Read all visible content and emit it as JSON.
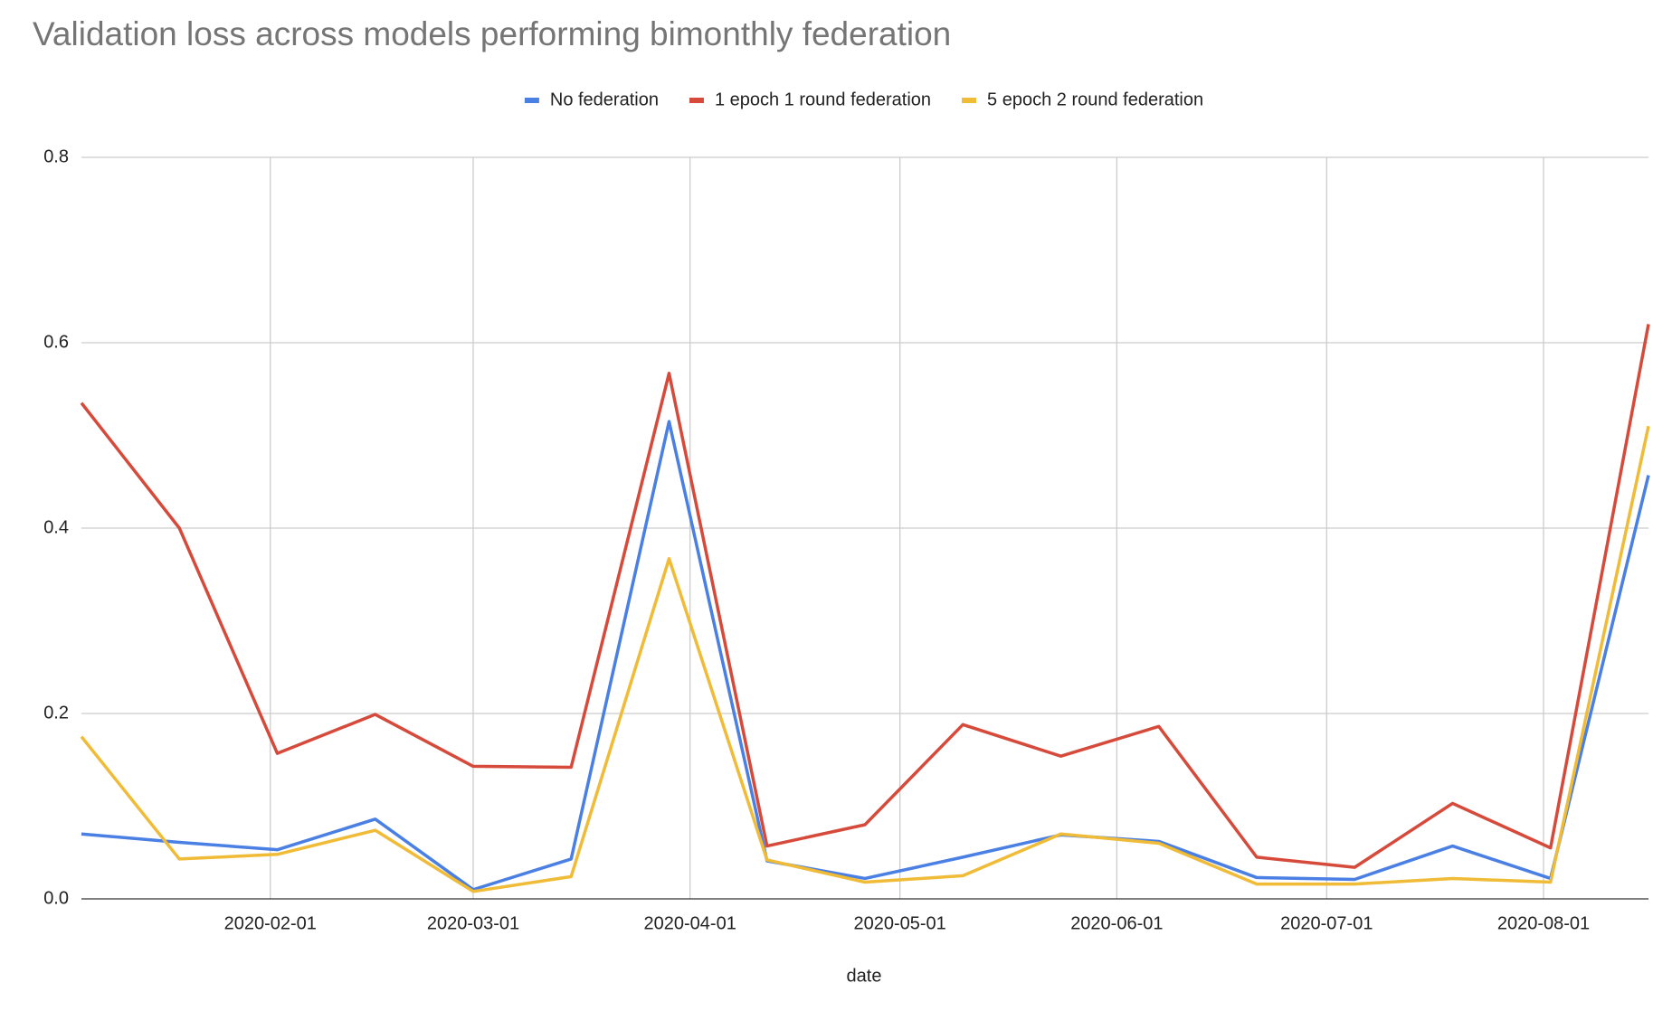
{
  "chart_data": {
    "type": "line",
    "title": "Validation loss across models performing bimonthly federation",
    "x_label": "date",
    "x": [
      "2020-01-05",
      "2020-01-19",
      "2020-02-02",
      "2020-02-16",
      "2020-03-01",
      "2020-03-15",
      "2020-03-29",
      "2020-04-12",
      "2020-04-26",
      "2020-05-10",
      "2020-05-24",
      "2020-06-07",
      "2020-06-21",
      "2020-07-05",
      "2020-07-19",
      "2020-08-02",
      "2020-08-16"
    ],
    "xlim": [
      "2020-01-05",
      "2020-08-16"
    ],
    "xticks": [
      "2020-02-01",
      "2020-03-01",
      "2020-04-01",
      "2020-05-01",
      "2020-06-01",
      "2020-07-01",
      "2020-08-01"
    ],
    "ylim": [
      0,
      0.8
    ],
    "yticks": [
      {
        "value": 0,
        "label": "0.0"
      },
      0.2,
      0.4,
      0.6,
      0.8
    ],
    "grid": true,
    "legend": "top",
    "series": [
      {
        "name": "No federation",
        "color": "#4a7fe3",
        "values": [
          0.07,
          0.061,
          0.053,
          0.086,
          0.01,
          0.043,
          0.515,
          0.041,
          0.022,
          0.045,
          0.069,
          0.062,
          0.023,
          0.021,
          0.057,
          0.022,
          0.457
        ]
      },
      {
        "name": "1 epoch 1 round federation",
        "color": "#d64a3b",
        "values": [
          0.535,
          0.4,
          0.157,
          0.199,
          0.143,
          0.142,
          0.567,
          0.057,
          0.08,
          0.188,
          0.154,
          0.186,
          0.045,
          0.034,
          0.103,
          0.055,
          0.62
        ]
      },
      {
        "name": "5 epoch 2 round federation",
        "color": "#f0bb36",
        "values": [
          0.175,
          0.043,
          0.048,
          0.074,
          0.008,
          0.024,
          0.367,
          0.042,
          0.018,
          0.025,
          0.07,
          0.06,
          0.016,
          0.016,
          0.022,
          0.018,
          0.51
        ]
      }
    ]
  }
}
